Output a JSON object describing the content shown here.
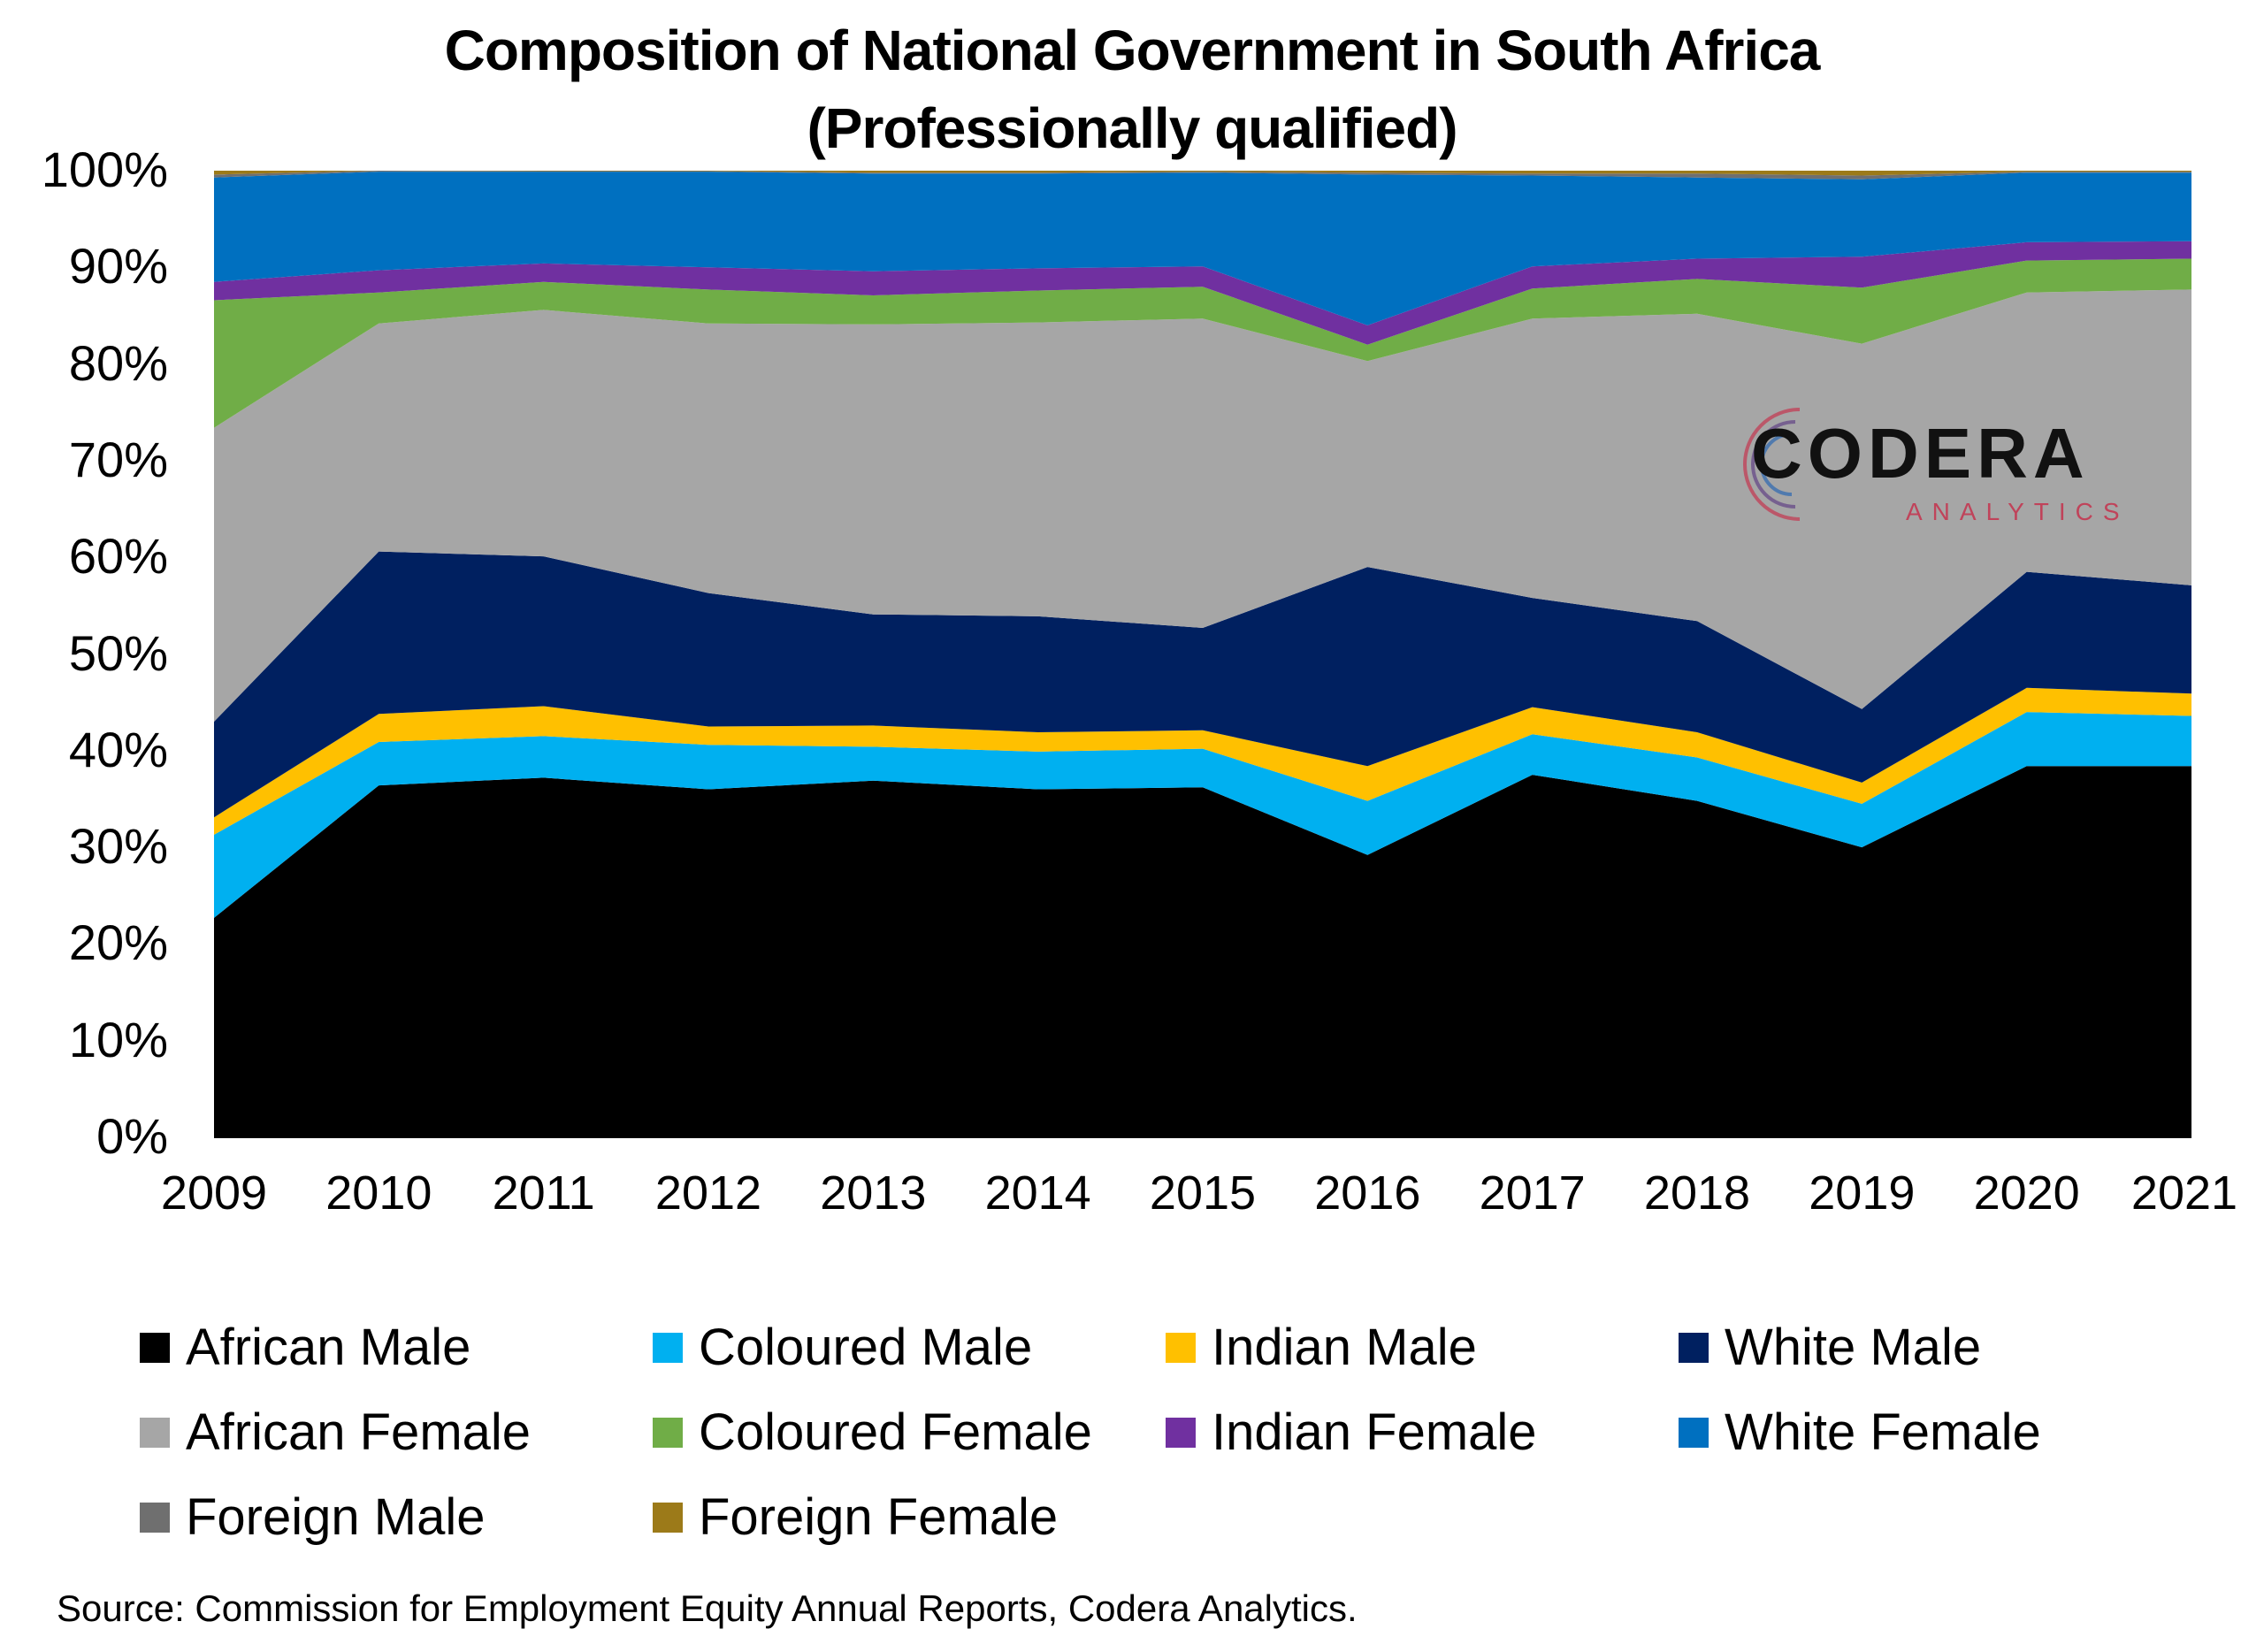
{
  "title_line1": "Composition of National Government in South Africa",
  "title_line2": "(Professionally qualified)",
  "source": "Source: Commission for Employment Equity Annual Reports, Codera Analytics.",
  "logo": {
    "name": "CODERA",
    "sub": "ANALYTICS"
  },
  "chart_data": {
    "type": "area",
    "stacked": true,
    "x": [
      "2009",
      "2010",
      "2011",
      "2012",
      "2013",
      "2014",
      "2015",
      "2016",
      "2017",
      "2018",
      "2019",
      "2020",
      "2021"
    ],
    "y_ticks": [
      "0%",
      "10%",
      "20%",
      "30%",
      "40%",
      "50%",
      "60%",
      "70%",
      "80%",
      "90%",
      "100%"
    ],
    "ylim": [
      0,
      100
    ],
    "legend_position": "bottom",
    "series": [
      {
        "name": "African Male",
        "color": "#000000",
        "values": [
          22.7,
          36.4,
          37.2,
          36.0,
          36.9,
          36.0,
          36.2,
          29.2,
          37.5,
          34.8,
          30.0,
          38.4,
          38.4
        ]
      },
      {
        "name": "Coloured Male",
        "color": "#00b0f0",
        "values": [
          8.6,
          4.5,
          4.3,
          4.6,
          3.5,
          3.9,
          4.0,
          5.6,
          4.2,
          4.5,
          4.5,
          5.6,
          5.2
        ]
      },
      {
        "name": "Indian Male",
        "color": "#ffc000",
        "values": [
          1.8,
          2.9,
          3.1,
          1.9,
          2.2,
          2.0,
          1.9,
          3.6,
          2.8,
          2.6,
          2.2,
          2.5,
          2.3
        ]
      },
      {
        "name": "White Male",
        "color": "#002060",
        "values": [
          9.9,
          16.8,
          15.5,
          13.8,
          11.5,
          12.0,
          10.6,
          20.6,
          11.3,
          11.5,
          7.6,
          12.0,
          11.2
        ]
      },
      {
        "name": "African Female",
        "color": "#a6a6a6",
        "values": [
          30.4,
          23.6,
          25.5,
          27.9,
          30.0,
          30.4,
          32.0,
          21.3,
          28.9,
          31.8,
          37.8,
          28.9,
          30.6
        ]
      },
      {
        "name": "Coloured Female",
        "color": "#70ad47",
        "values": [
          13.2,
          3.2,
          2.9,
          3.5,
          3.0,
          3.3,
          3.3,
          1.7,
          3.1,
          3.6,
          5.8,
          3.3,
          3.2
        ]
      },
      {
        "name": "Indian Female",
        "color": "#7030a0",
        "values": [
          1.9,
          2.3,
          1.9,
          2.3,
          2.5,
          2.3,
          2.1,
          2.0,
          2.3,
          2.1,
          3.2,
          1.9,
          1.8
        ]
      },
      {
        "name": "White Female",
        "color": "#0070c0",
        "values": [
          10.8,
          10.2,
          9.5,
          9.9,
          10.1,
          9.8,
          9.7,
          15.6,
          9.4,
          8.4,
          8.0,
          7.2,
          7.1
        ]
      },
      {
        "name": "Foreign Male",
        "color": "#6f6f6f",
        "values": [
          0.3,
          0.1,
          0.05,
          0.05,
          0.1,
          0.1,
          0.1,
          0.2,
          0.2,
          0.4,
          0.4,
          0.1,
          0.1
        ]
      },
      {
        "name": "Foreign Female",
        "color": "#9c7a19",
        "values": [
          0.4,
          0.0,
          0.05,
          0.05,
          0.2,
          0.2,
          0.1,
          0.2,
          0.3,
          0.3,
          0.5,
          0.1,
          0.1
        ]
      }
    ]
  }
}
